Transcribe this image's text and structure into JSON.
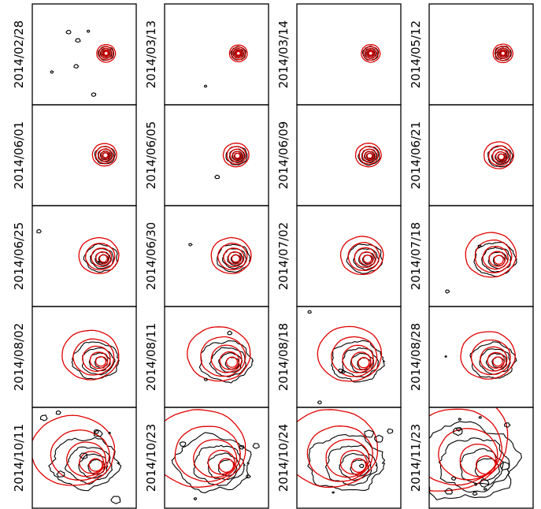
{
  "figure": {
    "colors": {
      "observed": "#000000",
      "model": "#e00000",
      "frame": "#000000"
    },
    "panels": [
      {
        "date": "2014/02/28",
        "size": 1.0,
        "spread": 0.0,
        "blobs": 6
      },
      {
        "date": "2014/03/13",
        "size": 0.95,
        "spread": 0.0,
        "blobs": 1
      },
      {
        "date": "2014/03/14",
        "size": 1.0,
        "spread": 0.0,
        "blobs": 0
      },
      {
        "date": "2014/05/12",
        "size": 1.05,
        "spread": 0.0,
        "blobs": 0
      },
      {
        "date": "2014/06/01",
        "size": 1.25,
        "spread": 0.1,
        "blobs": 0
      },
      {
        "date": "2014/06/05",
        "size": 1.3,
        "spread": 0.15,
        "blobs": 1
      },
      {
        "date": "2014/06/09",
        "size": 1.3,
        "spread": 0.15,
        "blobs": 0
      },
      {
        "date": "2014/06/21",
        "size": 1.45,
        "spread": 0.25,
        "blobs": 0
      },
      {
        "date": "2014/06/25",
        "size": 1.9,
        "spread": 0.35,
        "blobs": 2
      },
      {
        "date": "2014/06/30",
        "size": 1.9,
        "spread": 0.35,
        "blobs": 1
      },
      {
        "date": "2014/07/02",
        "size": 2.0,
        "spread": 0.4,
        "blobs": 0
      },
      {
        "date": "2014/07/18",
        "size": 2.3,
        "spread": 0.5,
        "blobs": 2
      },
      {
        "date": "2014/08/02",
        "size": 2.5,
        "spread": 0.6,
        "blobs": 0
      },
      {
        "date": "2014/08/11",
        "size": 2.7,
        "spread": 0.7,
        "blobs": 2
      },
      {
        "date": "2014/08/18",
        "size": 2.7,
        "spread": 0.75,
        "blobs": 4
      },
      {
        "date": "2014/08/28",
        "size": 2.4,
        "spread": 0.6,
        "blobs": 1
      },
      {
        "date": "2014/10/11",
        "size": 3.3,
        "spread": 1.0,
        "blobs": 8
      },
      {
        "date": "2014/10/23",
        "size": 3.6,
        "spread": 1.1,
        "blobs": 5
      },
      {
        "date": "2014/10/24",
        "size": 3.6,
        "spread": 1.1,
        "blobs": 5
      },
      {
        "date": "2014/11/23",
        "size": 4.8,
        "spread": 1.3,
        "blobs": 12
      }
    ]
  }
}
